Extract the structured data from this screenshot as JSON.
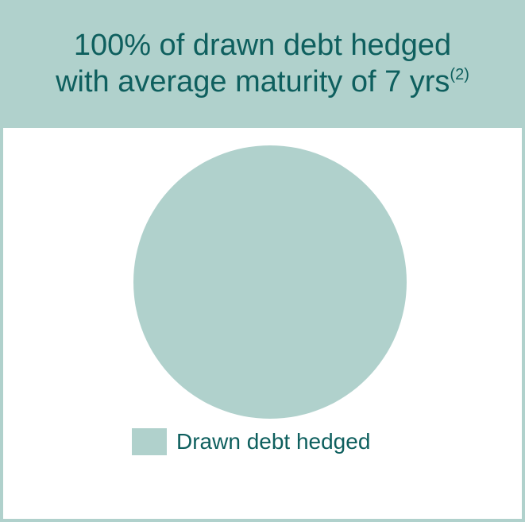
{
  "header": {
    "line1": "100% of drawn debt hedged",
    "line2": "with average maturity of 7 yrs",
    "footnote": "(2)"
  },
  "colors": {
    "teal_light": "#b0d1cc",
    "teal_dark": "#0e5f5e"
  },
  "chart_data": {
    "type": "pie",
    "title": "100% of drawn debt hedged with average maturity of 7 yrs(2)",
    "categories": [
      "Drawn debt hedged"
    ],
    "values": [
      100
    ],
    "legend_position": "bottom",
    "series": [
      {
        "name": "Drawn debt hedged",
        "values": [
          100
        ],
        "color": "#b0d1cc"
      }
    ]
  }
}
